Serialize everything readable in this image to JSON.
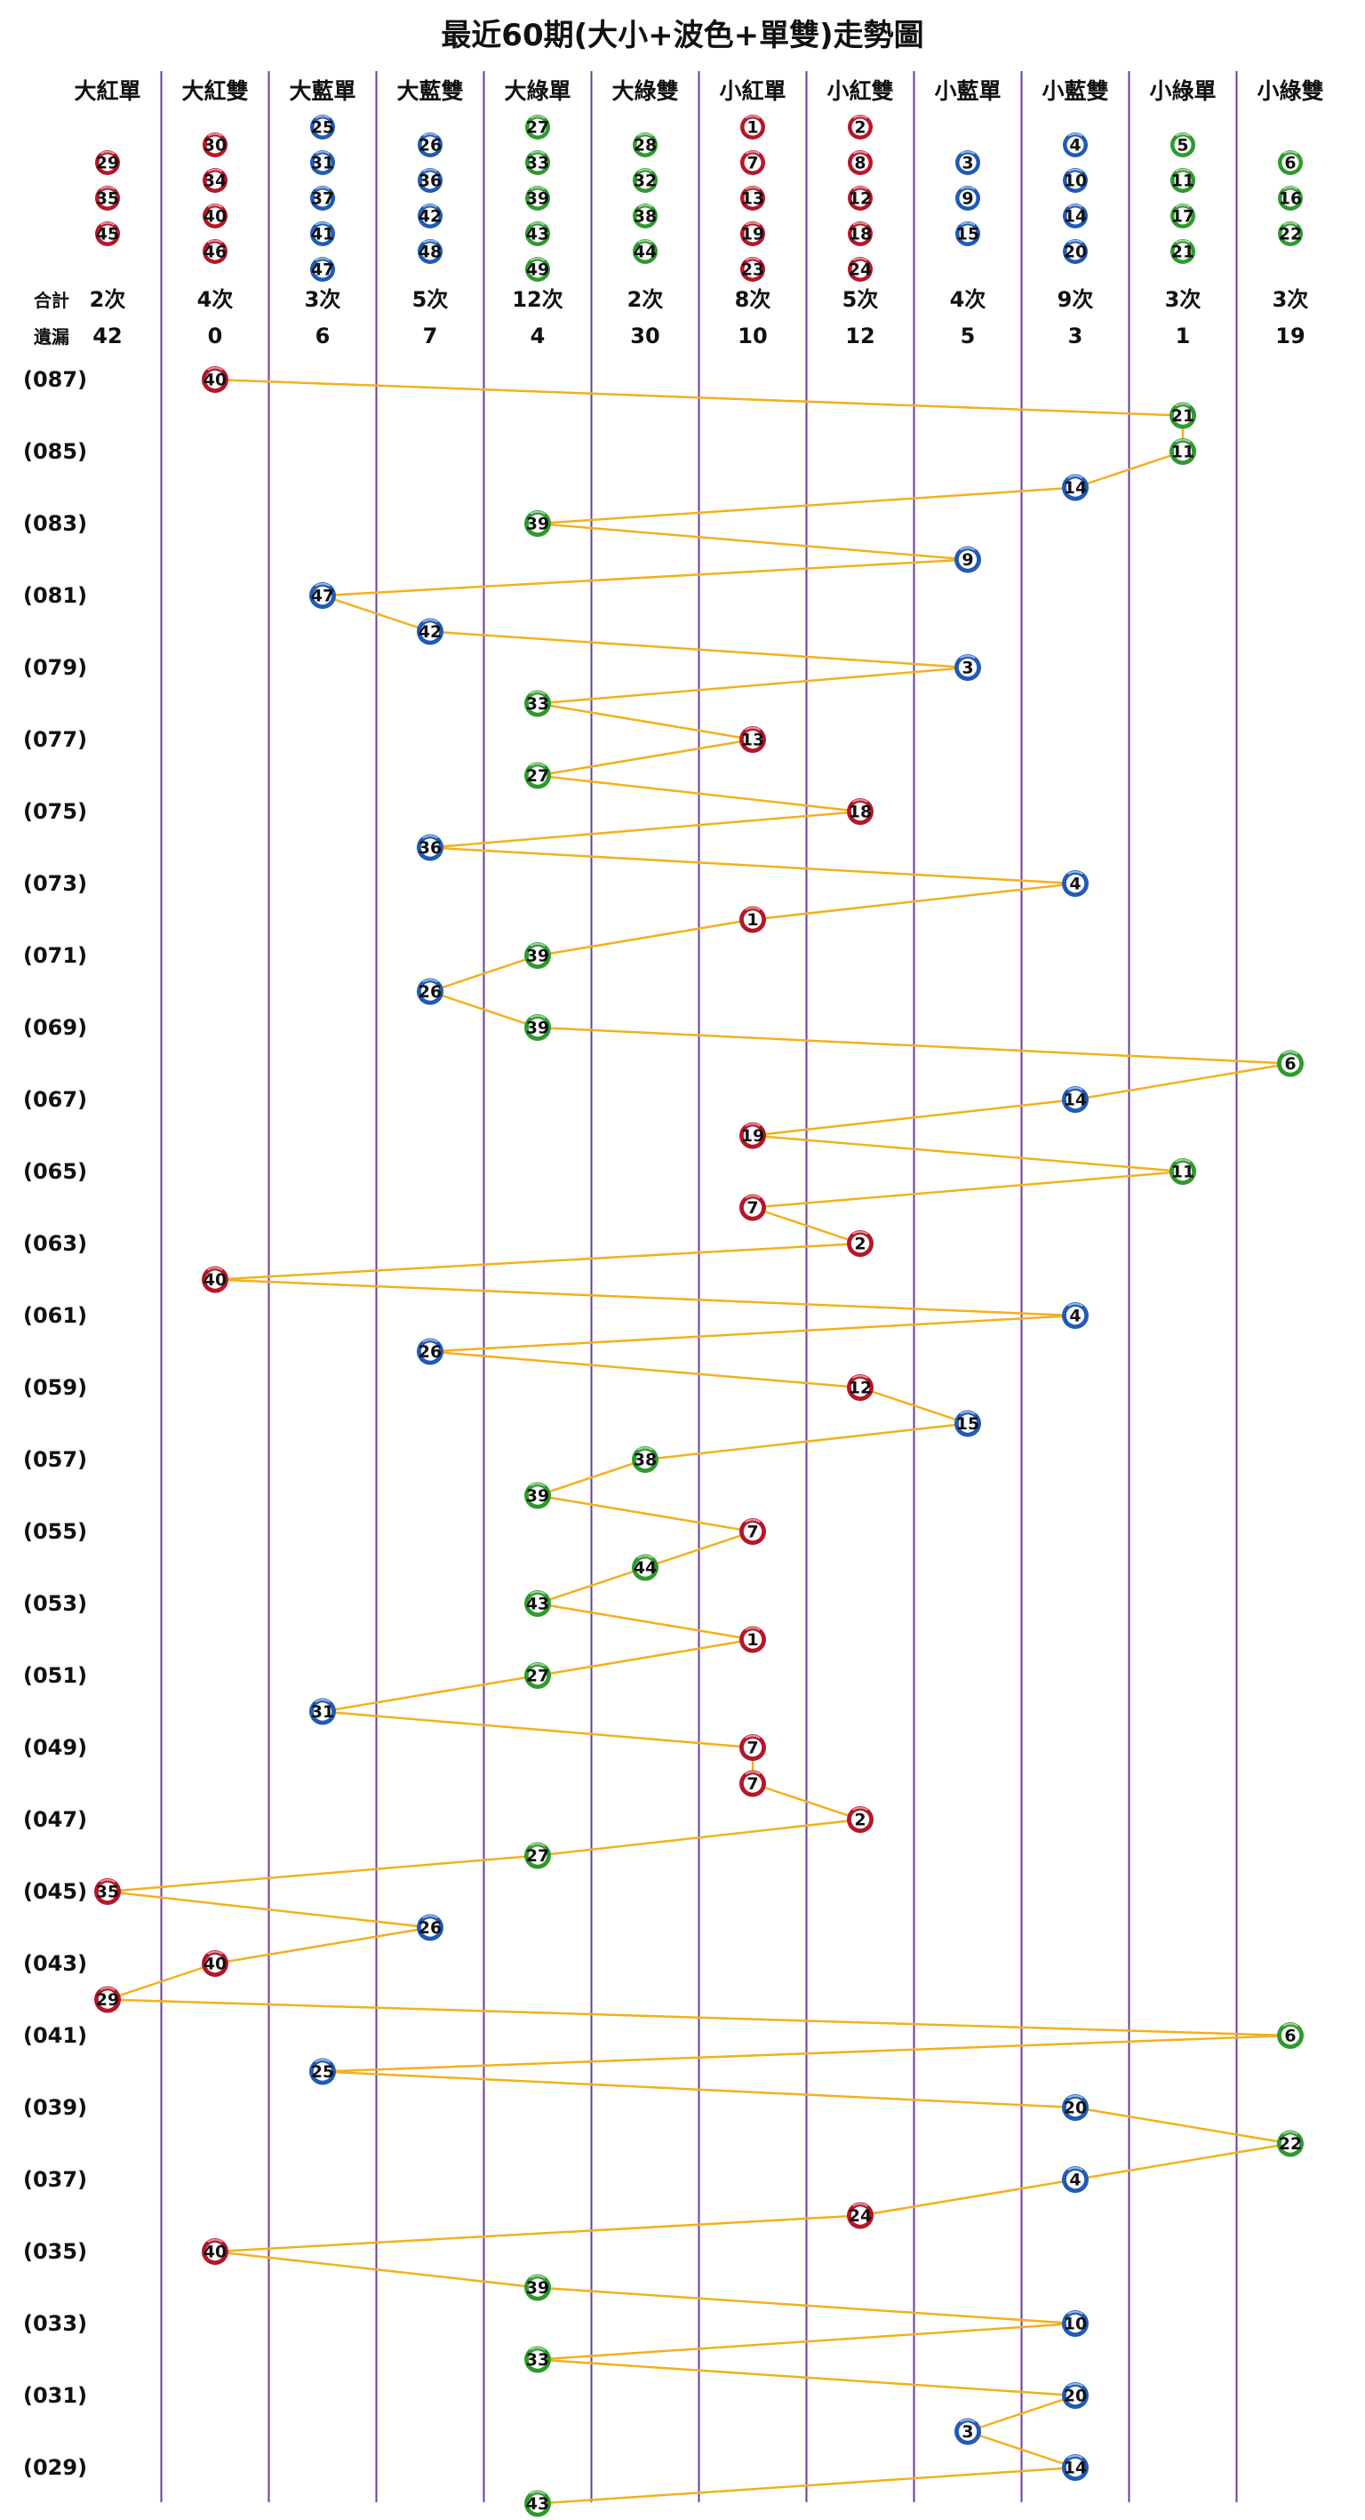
{
  "colors": {
    "red": "#b5162a",
    "blue": "#1f5bb5",
    "green": "#2e9a2e",
    "line": "#f2b01e",
    "divider": "#6a3d9a"
  },
  "chart_data": {
    "type": "line",
    "title": "最近60期(大小+波色+單雙)走勢圖",
    "columns": [
      {
        "name": "大紅單",
        "color": "red",
        "members": [
          29,
          35,
          45
        ],
        "total": "2次",
        "missing": "42"
      },
      {
        "name": "大紅雙",
        "color": "red",
        "members": [
          30,
          34,
          40,
          46
        ],
        "total": "4次",
        "missing": "0"
      },
      {
        "name": "大藍單",
        "color": "blue",
        "members": [
          25,
          31,
          37,
          41,
          47
        ],
        "total": "3次",
        "missing": "6"
      },
      {
        "name": "大藍雙",
        "color": "blue",
        "members": [
          26,
          36,
          42,
          48
        ],
        "total": "5次",
        "missing": "7"
      },
      {
        "name": "大綠單",
        "color": "green",
        "members": [
          27,
          33,
          39,
          43,
          49
        ],
        "total": "12次",
        "missing": "4"
      },
      {
        "name": "大綠雙",
        "color": "green",
        "members": [
          28,
          32,
          38,
          44
        ],
        "total": "2次",
        "missing": "30"
      },
      {
        "name": "小紅單",
        "color": "red",
        "members": [
          1,
          7,
          13,
          19,
          23
        ],
        "total": "8次",
        "missing": "10"
      },
      {
        "name": "小紅雙",
        "color": "red",
        "members": [
          2,
          8,
          12,
          18,
          24
        ],
        "total": "5次",
        "missing": "12"
      },
      {
        "name": "小藍單",
        "color": "blue",
        "members": [
          3,
          9,
          15
        ],
        "total": "4次",
        "missing": "5"
      },
      {
        "name": "小藍雙",
        "color": "blue",
        "members": [
          4,
          10,
          14,
          20
        ],
        "total": "9次",
        "missing": "3"
      },
      {
        "name": "小綠單",
        "color": "green",
        "members": [
          5,
          11,
          17,
          21
        ],
        "total": "3次",
        "missing": "1"
      },
      {
        "name": "小綠雙",
        "color": "green",
        "members": [
          6,
          16,
          22
        ],
        "total": "3次",
        "missing": "19"
      }
    ],
    "stat_labels": {
      "total": "合計",
      "missing": "遺漏"
    },
    "row_labels": [
      "(087)",
      "(085)",
      "(083)",
      "(081)",
      "(079)",
      "(077)",
      "(075)",
      "(073)",
      "(071)",
      "(069)",
      "(067)",
      "(065)",
      "(063)",
      "(061)",
      "(059)",
      "(057)",
      "(055)",
      "(053)",
      "(051)",
      "(049)",
      "(047)",
      "(045)",
      "(043)",
      "(041)",
      "(039)",
      "(037)",
      "(035)",
      "(033)",
      "(031)",
      "(029)"
    ],
    "draws": [
      {
        "period": 87,
        "number": 40,
        "column": 1
      },
      {
        "period": 86,
        "number": 21,
        "column": 10
      },
      {
        "period": 85,
        "number": 11,
        "column": 10
      },
      {
        "period": 84,
        "number": 14,
        "column": 9
      },
      {
        "period": 83,
        "number": 39,
        "column": 4
      },
      {
        "period": 82,
        "number": 9,
        "column": 8
      },
      {
        "period": 81,
        "number": 47,
        "column": 2
      },
      {
        "period": 80,
        "number": 42,
        "column": 3
      },
      {
        "period": 79,
        "number": 3,
        "column": 8
      },
      {
        "period": 78,
        "number": 33,
        "column": 4
      },
      {
        "period": 77,
        "number": 13,
        "column": 6
      },
      {
        "period": 76,
        "number": 27,
        "column": 4
      },
      {
        "period": 75,
        "number": 18,
        "column": 7
      },
      {
        "period": 74,
        "number": 36,
        "column": 3
      },
      {
        "period": 73,
        "number": 4,
        "column": 9
      },
      {
        "period": 72,
        "number": 1,
        "column": 6
      },
      {
        "period": 71,
        "number": 39,
        "column": 4
      },
      {
        "period": 70,
        "number": 26,
        "column": 3
      },
      {
        "period": 69,
        "number": 39,
        "column": 4
      },
      {
        "period": 68,
        "number": 6,
        "column": 11
      },
      {
        "period": 67,
        "number": 14,
        "column": 9
      },
      {
        "period": 66,
        "number": 19,
        "column": 6
      },
      {
        "period": 65,
        "number": 11,
        "column": 10
      },
      {
        "period": 64,
        "number": 7,
        "column": 6
      },
      {
        "period": 63,
        "number": 2,
        "column": 7
      },
      {
        "period": 62,
        "number": 40,
        "column": 1
      },
      {
        "period": 61,
        "number": 4,
        "column": 9
      },
      {
        "period": 60,
        "number": 26,
        "column": 3
      },
      {
        "period": 59,
        "number": 12,
        "column": 7
      },
      {
        "period": 58,
        "number": 15,
        "column": 8
      },
      {
        "period": 57,
        "number": 38,
        "column": 5
      },
      {
        "period": 56,
        "number": 39,
        "column": 4
      },
      {
        "period": 55,
        "number": 7,
        "column": 6
      },
      {
        "period": 54,
        "number": 44,
        "column": 5
      },
      {
        "period": 53,
        "number": 43,
        "column": 4
      },
      {
        "period": 52,
        "number": 1,
        "column": 6
      },
      {
        "period": 51,
        "number": 27,
        "column": 4
      },
      {
        "period": 50,
        "number": 31,
        "column": 2
      },
      {
        "period": 49,
        "number": 7,
        "column": 6
      },
      {
        "period": 48,
        "number": 7,
        "column": 6
      },
      {
        "period": 47,
        "number": 2,
        "column": 7
      },
      {
        "period": 46,
        "number": 27,
        "column": 4
      },
      {
        "period": 45,
        "number": 35,
        "column": 0
      },
      {
        "period": 44,
        "number": 26,
        "column": 3
      },
      {
        "period": 43,
        "number": 40,
        "column": 1
      },
      {
        "period": 42,
        "number": 29,
        "column": 0
      },
      {
        "period": 41,
        "number": 6,
        "column": 11
      },
      {
        "period": 40,
        "number": 25,
        "column": 2
      },
      {
        "period": 39,
        "number": 20,
        "column": 9
      },
      {
        "period": 38,
        "number": 22,
        "column": 11
      },
      {
        "period": 37,
        "number": 4,
        "column": 9
      },
      {
        "period": 36,
        "number": 24,
        "column": 7
      },
      {
        "period": 35,
        "number": 40,
        "column": 1
      },
      {
        "period": 34,
        "number": 39,
        "column": 4
      },
      {
        "period": 33,
        "number": 10,
        "column": 9
      },
      {
        "period": 32,
        "number": 33,
        "column": 4
      },
      {
        "period": 31,
        "number": 20,
        "column": 9
      },
      {
        "period": 30,
        "number": 3,
        "column": 8
      },
      {
        "period": 29,
        "number": 14,
        "column": 9
      },
      {
        "period": 28,
        "number": 43,
        "column": 4
      }
    ]
  }
}
